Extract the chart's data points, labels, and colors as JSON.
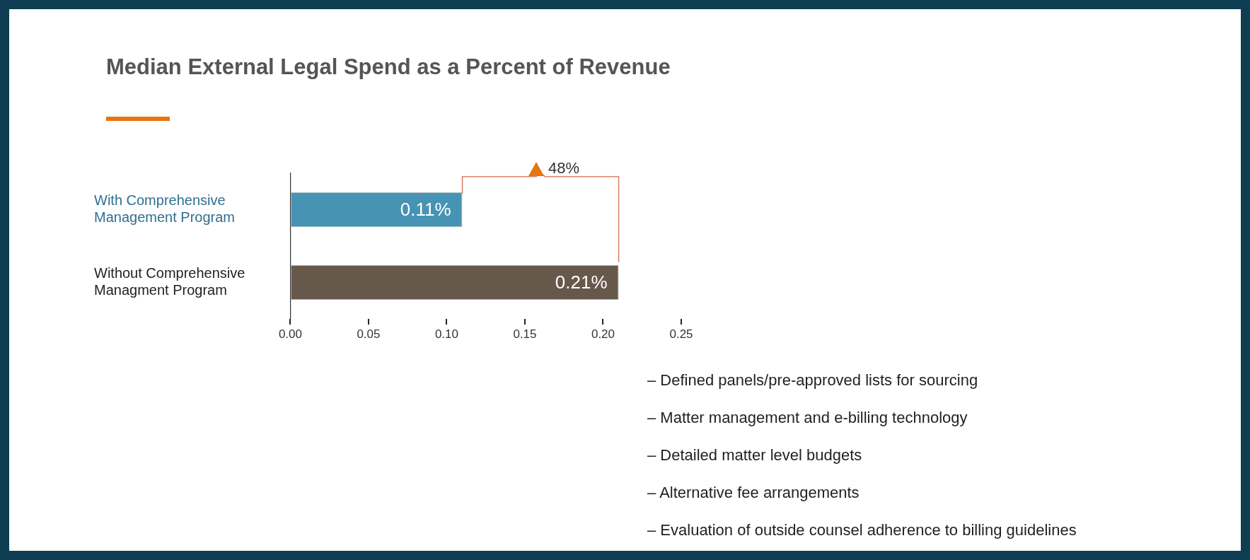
{
  "chart_data": {
    "type": "bar",
    "orientation": "horizontal",
    "title": "Median External Legal Spend as a Percent of Revenue",
    "categories": [
      "With Comprehensive Management Program",
      "Without Comprehensive Managment Program"
    ],
    "values": [
      0.11,
      0.21
    ],
    "colors": [
      "#4793b4",
      "#67584c"
    ],
    "value_labels": [
      "0.11%",
      "0.21%"
    ],
    "xlim": [
      0,
      0.25
    ],
    "xticks": [
      {
        "value": 0,
        "label": "0.00"
      },
      {
        "value": 0.05,
        "label": "0.05"
      },
      {
        "value": 0.1,
        "label": "0.10"
      },
      {
        "value": 0.15,
        "label": "0.15"
      },
      {
        "value": 0.2,
        "label": "0.20"
      },
      {
        "value": 0.25,
        "label": "0.25"
      }
    ],
    "grid": false,
    "annotations": [
      "48%",
      "– Defined panels/pre-approved lists for sourcing",
      "– Matter management and e-billing technology",
      "– Detailed matter level budgets",
      "– Alternative fee arrangements",
      "– Evaluation of outside counsel adherence to billing guidelines"
    ]
  }
}
